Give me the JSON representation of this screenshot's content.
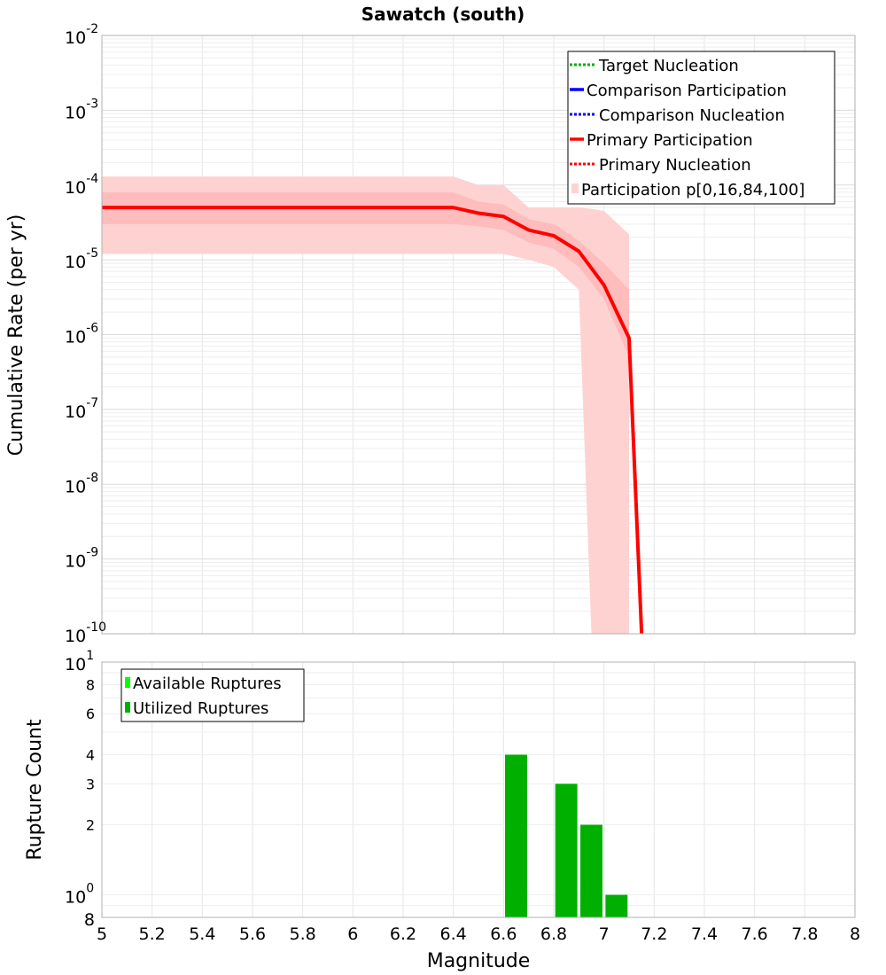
{
  "title": "Sawatch (south)",
  "colors": {
    "target": "#00b000",
    "comparison": "#0000ff",
    "primary": "#ff0000",
    "band_outer": "#ffd2d2",
    "band_inner": "#ffbcbc",
    "available": "#00ff00",
    "utilized": "#00b000",
    "grid": "#e6e6e6",
    "frame": "#b0b0b0"
  },
  "chart_data": [
    {
      "type": "line",
      "ylabel": "Cumulative Rate (per yr)",
      "yscale": "log",
      "xlim": [
        5,
        8
      ],
      "ylim": [
        1e-10,
        0.01
      ],
      "y_ticks": [
        {
          "base": "10",
          "exp": "-2",
          "v": 0.01
        },
        {
          "base": "10",
          "exp": "-3",
          "v": 0.001
        },
        {
          "base": "10",
          "exp": "-4",
          "v": 0.0001
        },
        {
          "base": "10",
          "exp": "-5",
          "v": 1e-05
        },
        {
          "base": "10",
          "exp": "-6",
          "v": 1e-06
        },
        {
          "base": "10",
          "exp": "-7",
          "v": 1e-07
        },
        {
          "base": "10",
          "exp": "-8",
          "v": 1e-08
        },
        {
          "base": "10",
          "exp": "-9",
          "v": 1e-09
        },
        {
          "base": "10",
          "exp": "-10",
          "v": 1e-10
        }
      ],
      "legend_position": "top-right",
      "legend": [
        {
          "label": "Target Nucleation",
          "style": "dotted",
          "color": "#00b000"
        },
        {
          "label": "Comparison Participation",
          "style": "solid",
          "color": "#0000ff"
        },
        {
          "label": "Comparison Nucleation",
          "style": "dotted",
          "color": "#0000ff"
        },
        {
          "label": "Primary Participation",
          "style": "solid",
          "color": "#ff0000"
        },
        {
          "label": "Primary Nucleation",
          "style": "dotted",
          "color": "#ff0000"
        },
        {
          "label": "Participation p[0,16,84,100]",
          "style": "band",
          "color": "#ffd2d2"
        }
      ],
      "series": [
        {
          "name": "Primary Participation",
          "x": [
            5.0,
            6.4,
            6.5,
            6.6,
            6.7,
            6.8,
            6.9,
            7.0,
            7.1,
            7.15
          ],
          "y": [
            5e-05,
            5e-05,
            4.2e-05,
            3.8e-05,
            2.5e-05,
            2.1e-05,
            1.3e-05,
            4.6e-06,
            9e-07,
            1e-10
          ]
        },
        {
          "name": "Primary Nucleation",
          "x": [
            5.0,
            6.4,
            6.5,
            6.6,
            6.7,
            6.8,
            6.9,
            7.0,
            7.1,
            7.15
          ],
          "y": [
            5e-05,
            5e-05,
            4.2e-05,
            3.8e-05,
            2.5e-05,
            2.1e-05,
            1.3e-05,
            4.6e-06,
            9e-07,
            1e-10
          ]
        }
      ],
      "bands": [
        {
          "name": "Participation p[0,100]",
          "x": [
            5.0,
            6.4,
            6.5,
            6.6,
            6.7,
            6.8,
            6.9,
            6.95,
            7.0,
            7.1
          ],
          "upper": [
            0.00013,
            0.00013,
            0.0001,
            0.0001,
            5e-05,
            5e-05,
            5e-05,
            4.8e-05,
            4.5e-05,
            2.2e-05
          ],
          "lower": [
            1.2e-05,
            1.2e-05,
            1.2e-05,
            1.2e-05,
            1e-05,
            8e-06,
            4e-06,
            1e-10,
            1e-10,
            1e-10
          ]
        },
        {
          "name": "Participation p[16,84]",
          "x": [
            5.0,
            6.4,
            6.5,
            6.6,
            6.7,
            6.8,
            6.9,
            7.0,
            7.1
          ],
          "upper": [
            8e-05,
            8e-05,
            6e-05,
            5.5e-05,
            3.5e-05,
            3e-05,
            1.8e-05,
            9e-06,
            4e-06
          ],
          "lower": [
            3e-05,
            3e-05,
            2.8e-05,
            2.5e-05,
            1.7e-05,
            1.4e-05,
            8e-06,
            3e-06,
            5e-07
          ]
        }
      ]
    },
    {
      "type": "bar",
      "ylabel": "Rupture Count",
      "xlabel": "Magnitude",
      "yscale": "log",
      "xlim": [
        5,
        8
      ],
      "ylim": [
        0.8,
        10
      ],
      "x_ticks": [
        "5",
        "5.2",
        "5.4",
        "5.6",
        "5.8",
        "6",
        "6.2",
        "6.4",
        "6.6",
        "6.8",
        "7",
        "7.2",
        "7.4",
        "7.6",
        "7.8",
        "8"
      ],
      "y_minor_labels": [
        {
          "label": "8",
          "v": 8
        },
        {
          "label": "6",
          "v": 6
        },
        {
          "label": "4",
          "v": 4
        },
        {
          "label": "3",
          "v": 3
        },
        {
          "label": "2",
          "v": 2
        },
        {
          "label": "8",
          "v": 0.8
        }
      ],
      "y_major_labels": [
        {
          "base": "10",
          "exp": "1",
          "v": 10
        },
        {
          "base": "10",
          "exp": "0",
          "v": 1
        }
      ],
      "legend_position": "top-left",
      "legend": [
        {
          "label": "Available Ruptures",
          "color": "#00ff00"
        },
        {
          "label": "Utilized Ruptures",
          "color": "#00b000"
        }
      ],
      "series": [
        {
          "name": "Utilized Ruptures",
          "x": [
            6.65,
            6.85,
            6.95,
            7.05
          ],
          "values": [
            4,
            3,
            2,
            1
          ]
        }
      ]
    }
  ]
}
